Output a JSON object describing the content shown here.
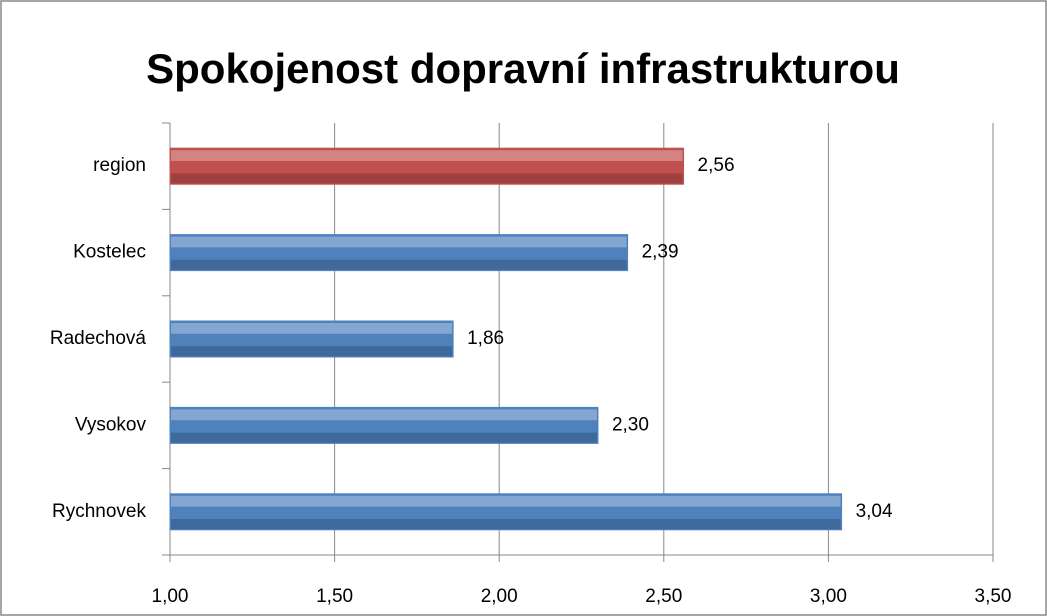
{
  "chart_data": {
    "type": "hbar",
    "title": "Spokojenost dopravní infrastrukturou",
    "categories": [
      "region",
      "Kostelec",
      "Radechová",
      "Vysokov",
      "Rychnovek"
    ],
    "values": [
      2.56,
      2.39,
      1.86,
      2.3,
      3.04
    ],
    "value_labels": [
      "2,56",
      "2,39",
      "1,86",
      "2,30",
      "3,04"
    ],
    "colors": [
      "#c0504d",
      "#4f81bd",
      "#4f81bd",
      "#4f81bd",
      "#4f81bd"
    ],
    "xlim": [
      1,
      3.5
    ],
    "xticks": [
      {
        "value": 1,
        "label": "1,00"
      },
      {
        "value": 1.5,
        "label": "1,50"
      },
      {
        "value": 2,
        "label": "2,00"
      },
      {
        "value": 2.5,
        "label": "2,50"
      },
      {
        "value": 3,
        "label": "3,00"
      },
      {
        "value": 3.5,
        "label": "3,50"
      }
    ],
    "grid": true
  }
}
